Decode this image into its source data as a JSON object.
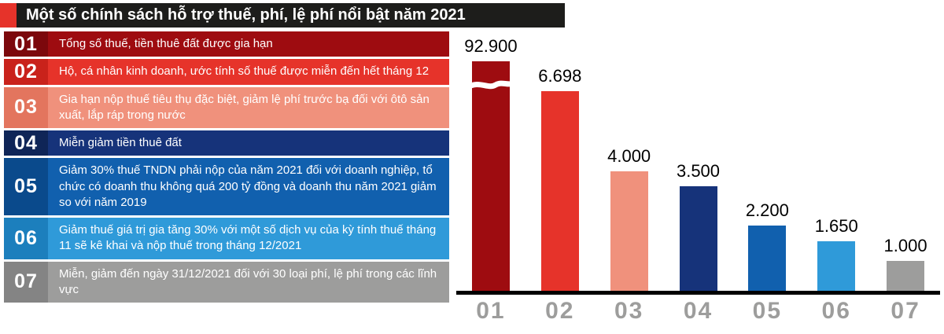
{
  "title": "Một số chính sách hỗ trợ thuế, phí, lệ phí nổi bật năm 2021",
  "accent_color": "#e6332a",
  "title_bar_color": "#1d1d1b",
  "legend": {
    "items": [
      {
        "num": "01",
        "text": "Tổng số thuế, tiền thuê đất được gia hạn",
        "color": "#9e0c10",
        "badge": "#7c080c"
      },
      {
        "num": "02",
        "text": "Hộ, cá nhân kinh doanh, ước tính số thuế được miễn đến hết tháng 12",
        "color": "#e6332a",
        "badge": "#c9221b"
      },
      {
        "num": "03",
        "text": "Gia hạn nộp thuế tiêu thụ đặc biệt, giảm lệ phí trước bạ đối với ôtô sản xuất, lắp ráp trong nước",
        "color": "#f0917c",
        "badge": "#e3755e"
      },
      {
        "num": "04",
        "text": "Miễn giảm tiền thuê đất",
        "color": "#16337a",
        "badge": "#0f2557"
      },
      {
        "num": "05",
        "text": "Giảm 30% thuế TNDN phải nộp của năm 2021 đối với doanh nghiệp, tổ chức có doanh thu không quá 200 tỷ đồng và doanh thu năm 2021 giảm so với năm 2019",
        "color": "#1160ae",
        "badge": "#0a4a8c"
      },
      {
        "num": "06",
        "text": "Giảm thuế giá trị gia tăng 30% với một số dịch vụ của kỳ tính thuế tháng 11 sẽ kê khai và nộp thuế trong tháng 12/2021",
        "color": "#2f9ad9",
        "badge": "#1c7fbd"
      },
      {
        "num": "07",
        "text": "Miễn, giảm đến ngày 31/12/2021 đối với 30 loại phí, lệ phí trong các lĩnh vực",
        "color": "#9d9d9c",
        "badge": "#848484"
      }
    ]
  },
  "chart_data": {
    "type": "bar",
    "title": "Một số chính sách hỗ trợ thuế, phí, lệ phí nổi bật năm 2021",
    "categories": [
      "01",
      "02",
      "03",
      "04",
      "05",
      "06",
      "07"
    ],
    "values": [
      92900,
      6698,
      4000,
      3500,
      2200,
      1650,
      1000
    ],
    "value_labels": [
      "92.900",
      "6.698",
      "4.000",
      "3.500",
      "2.200",
      "1.650",
      "1.000"
    ],
    "bar_colors": [
      "#9e0c10",
      "#e6332a",
      "#f0917c",
      "#16337a",
      "#1160ae",
      "#2f9ad9",
      "#9d9d9c"
    ],
    "xlabel": "",
    "ylabel": "",
    "grid": false,
    "legend_position": "left",
    "axis_break_category": "01",
    "axis_break_note": "bar 01 drawn with a white wavy break because its value far exceeds the linear scale of the other bars"
  }
}
